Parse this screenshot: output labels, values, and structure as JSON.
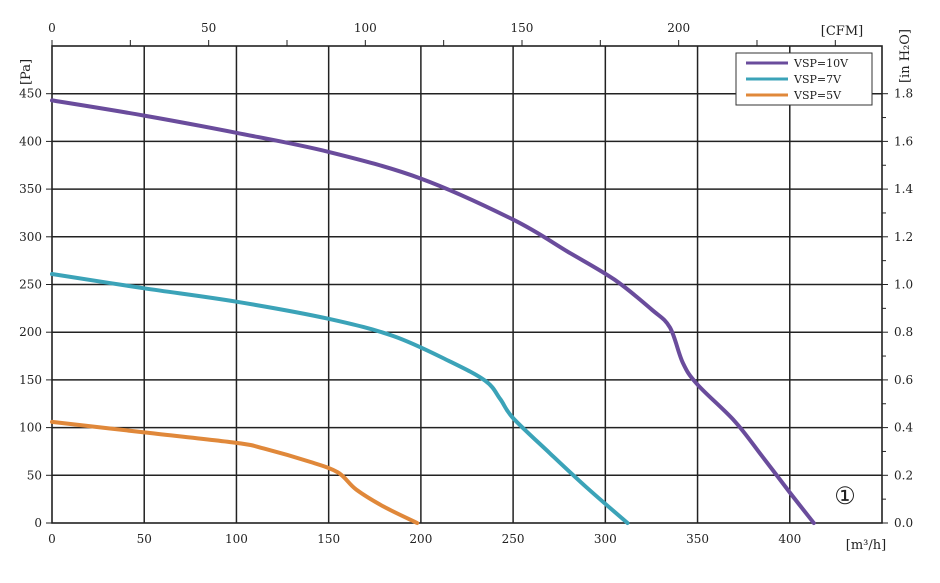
{
  "chart_data": {
    "type": "line",
    "title": "",
    "x": {
      "label": "[m³/h]",
      "range": [
        0,
        450
      ],
      "ticks": [
        0,
        50,
        100,
        150,
        200,
        250,
        300,
        350,
        400
      ]
    },
    "x2": {
      "label": "[CFM]",
      "range": [
        0,
        264.9
      ],
      "ticks": [
        0,
        50,
        100,
        150,
        200
      ]
    },
    "y": {
      "label": "[Pa]",
      "range": [
        0,
        500
      ],
      "ticks": [
        0,
        50,
        100,
        150,
        200,
        250,
        300,
        350,
        400,
        450
      ]
    },
    "y2": {
      "label": "[in H₂O]",
      "range": [
        0,
        2.0
      ],
      "ticks": [
        "0.0",
        "0.2",
        "0.4",
        "0.6",
        "0.8",
        "1.0",
        "1.2",
        "1.4",
        "1.6",
        "1.8"
      ]
    },
    "grid": true,
    "legend": "top-right",
    "series": [
      {
        "name": "VSP=10V",
        "color": "#6a4c9c",
        "points": [
          [
            0,
            443
          ],
          [
            50,
            427
          ],
          [
            100,
            409
          ],
          [
            150,
            389
          ],
          [
            200,
            361
          ],
          [
            250,
            318
          ],
          [
            280,
            284
          ],
          [
            305,
            255
          ],
          [
            325,
            224
          ],
          [
            335,
            205
          ],
          [
            342,
            168
          ],
          [
            350,
            145
          ],
          [
            370,
            107
          ],
          [
            385,
            70
          ],
          [
            400,
            32
          ],
          [
            413,
            0
          ]
        ]
      },
      {
        "name": "VSP=7V",
        "color": "#3ba3b8",
        "points": [
          [
            0,
            261
          ],
          [
            50,
            246
          ],
          [
            100,
            232
          ],
          [
            150,
            214
          ],
          [
            185,
            196
          ],
          [
            215,
            170
          ],
          [
            235,
            149
          ],
          [
            243,
            130
          ],
          [
            250,
            110
          ],
          [
            270,
            73
          ],
          [
            290,
            37
          ],
          [
            312,
            0
          ]
        ]
      },
      {
        "name": "VSP=5V",
        "color": "#e0883a",
        "points": [
          [
            0,
            106
          ],
          [
            50,
            95
          ],
          [
            100,
            84
          ],
          [
            115,
            78
          ],
          [
            140,
            64
          ],
          [
            155,
            53
          ],
          [
            165,
            35
          ],
          [
            180,
            17
          ],
          [
            198,
            0
          ]
        ]
      }
    ],
    "annotation": "①"
  }
}
